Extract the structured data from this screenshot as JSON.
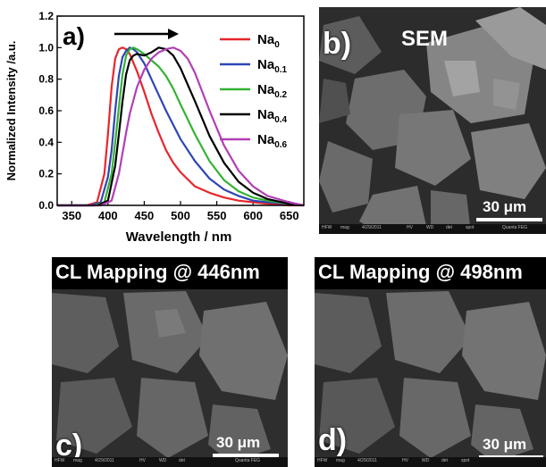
{
  "chart_data": {
    "type": "line",
    "panel_label": "a)",
    "xlabel": "Wavelength / nm",
    "ylabel": "Normalized Intensity /a.u.",
    "xlim": [
      330,
      670
    ],
    "ylim": [
      0,
      1.2
    ],
    "x_ticks": [
      350,
      400,
      450,
      500,
      550,
      600,
      650
    ],
    "y_ticks": [
      "0.0",
      "0.2",
      "0.4",
      "0.6",
      "0.8",
      "1.0",
      "1.2"
    ],
    "grid": false,
    "legend_position": "top-right",
    "annotation": "arrow pointing right (red shift)",
    "series": [
      {
        "name_base": "Na",
        "name_sub": "0",
        "color": "#e8262b",
        "x": [
          330,
          370,
          385,
          395,
          400,
          405,
          410,
          415,
          420,
          425,
          430,
          440,
          450,
          460,
          470,
          480,
          490,
          500,
          520,
          540,
          560,
          580,
          600,
          620,
          650,
          670
        ],
        "y": [
          0,
          0,
          0.02,
          0.2,
          0.45,
          0.75,
          0.93,
          0.99,
          1.0,
          0.99,
          0.96,
          0.85,
          0.72,
          0.58,
          0.46,
          0.35,
          0.27,
          0.21,
          0.12,
          0.08,
          0.05,
          0.03,
          0.02,
          0.01,
          0,
          0
        ]
      },
      {
        "name_base": "Na",
        "name_sub": "0.1",
        "color": "#2f45b5",
        "x": [
          330,
          375,
          390,
          400,
          405,
          410,
          415,
          420,
          425,
          430,
          435,
          440,
          450,
          460,
          470,
          480,
          490,
          500,
          520,
          540,
          560,
          580,
          600,
          620,
          650,
          670
        ],
        "y": [
          0,
          0,
          0.02,
          0.18,
          0.35,
          0.6,
          0.82,
          0.94,
          0.98,
          1.0,
          0.99,
          0.97,
          0.9,
          0.8,
          0.7,
          0.6,
          0.51,
          0.42,
          0.28,
          0.17,
          0.1,
          0.06,
          0.03,
          0.02,
          0.01,
          0
        ]
      },
      {
        "name_base": "Na",
        "name_sub": "0.2",
        "color": "#34b233",
        "x": [
          330,
          380,
          395,
          405,
          410,
          415,
          420,
          425,
          430,
          435,
          440,
          450,
          460,
          470,
          480,
          490,
          500,
          520,
          540,
          560,
          580,
          600,
          620,
          650,
          670
        ],
        "y": [
          0,
          0,
          0.02,
          0.2,
          0.4,
          0.62,
          0.83,
          0.95,
          0.99,
          1.0,
          0.99,
          0.96,
          0.92,
          0.88,
          0.82,
          0.74,
          0.64,
          0.45,
          0.28,
          0.16,
          0.09,
          0.05,
          0.03,
          0.01,
          0
        ]
      },
      {
        "name_base": "Na",
        "name_sub": "0.4",
        "color": "#000000",
        "x": [
          330,
          385,
          400,
          410,
          415,
          420,
          425,
          430,
          435,
          440,
          450,
          460,
          470,
          480,
          490,
          500,
          520,
          540,
          560,
          580,
          600,
          620,
          650,
          670
        ],
        "y": [
          0,
          0,
          0.03,
          0.25,
          0.45,
          0.66,
          0.83,
          0.92,
          0.95,
          0.96,
          0.95,
          0.97,
          1.0,
          0.99,
          0.95,
          0.87,
          0.66,
          0.44,
          0.27,
          0.15,
          0.08,
          0.04,
          0.01,
          0
        ]
      },
      {
        "name_base": "Na",
        "name_sub": "0.6",
        "color": "#b23fb5",
        "x": [
          330,
          390,
          405,
          415,
          420,
          425,
          430,
          440,
          450,
          460,
          470,
          480,
          490,
          500,
          510,
          520,
          540,
          560,
          580,
          600,
          620,
          650,
          670
        ],
        "y": [
          0,
          0,
          0.03,
          0.2,
          0.33,
          0.46,
          0.58,
          0.75,
          0.86,
          0.93,
          0.97,
          0.99,
          1.0,
          0.98,
          0.93,
          0.84,
          0.6,
          0.38,
          0.22,
          0.12,
          0.06,
          0.02,
          0
        ]
      }
    ]
  },
  "panels": {
    "b": {
      "letter": "b)",
      "title": "SEM",
      "scale": "30 μm",
      "info": [
        "HFW",
        "mag",
        "4/29/2011",
        "HV",
        "WD",
        "det",
        "spot",
        "Quanta FEG"
      ]
    },
    "c": {
      "letter": "c)",
      "title": "CL Mapping @ 446nm",
      "scale": "30 μm",
      "info": [
        "HFW",
        "mag",
        "4/29/2011",
        "HV",
        "WD",
        "det",
        "Quanta FEG"
      ]
    },
    "d": {
      "letter": "d)",
      "title": "CL Mapping @ 498nm",
      "scale": "30 μm",
      "info": [
        "HFW",
        "mag",
        "4/29/2011",
        "HV",
        "WD",
        "det",
        "spot"
      ]
    }
  }
}
